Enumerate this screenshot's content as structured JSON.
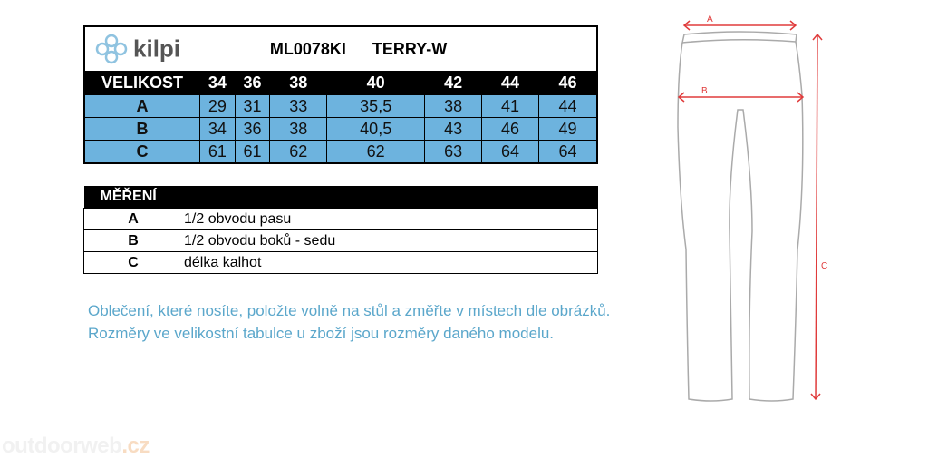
{
  "brand": {
    "name": "kilpi",
    "logo_icon": "kilpi-knot-logo"
  },
  "product": {
    "code": "ML0078KI",
    "name": "TERRY-W"
  },
  "size_table": {
    "header_label": "VELIKOST",
    "sizes": [
      "34",
      "36",
      "38",
      "40",
      "42",
      "44",
      "46"
    ],
    "rows": [
      {
        "label": "A",
        "values": [
          "29",
          "31",
          "33",
          "35,5",
          "38",
          "41",
          "44"
        ]
      },
      {
        "label": "B",
        "values": [
          "34",
          "36",
          "38",
          "40,5",
          "43",
          "46",
          "49"
        ]
      },
      {
        "label": "C",
        "values": [
          "61",
          "61",
          "62",
          "62",
          "63",
          "64",
          "64"
        ]
      }
    ]
  },
  "measurement_table": {
    "title": "MĚŘENÍ",
    "rows": [
      {
        "label": "A",
        "description": "1/2 obvodu pasu"
      },
      {
        "label": "B",
        "description": "1/2 obvodu boků - sedu"
      },
      {
        "label": "C",
        "description": "délka kalhot"
      }
    ]
  },
  "notes": [
    "Oblečení, které nosíte, položte volně na stůl a změřte v místech dle obrázků.",
    "Rozměry ve velikostní tabulce u zboží jsou rozměry daného modelu."
  ],
  "diagram": {
    "labels": {
      "a": "A",
      "b": "B",
      "c": "C"
    },
    "arrow_color": "#e03b3b",
    "outline_color": "#aaaaaa"
  },
  "watermark": {
    "main": "outdoorweb",
    "suffix": ".cz"
  },
  "colors": {
    "table_fill": "#6db3de",
    "header": "#000000",
    "note_text": "#5ba7cb"
  }
}
